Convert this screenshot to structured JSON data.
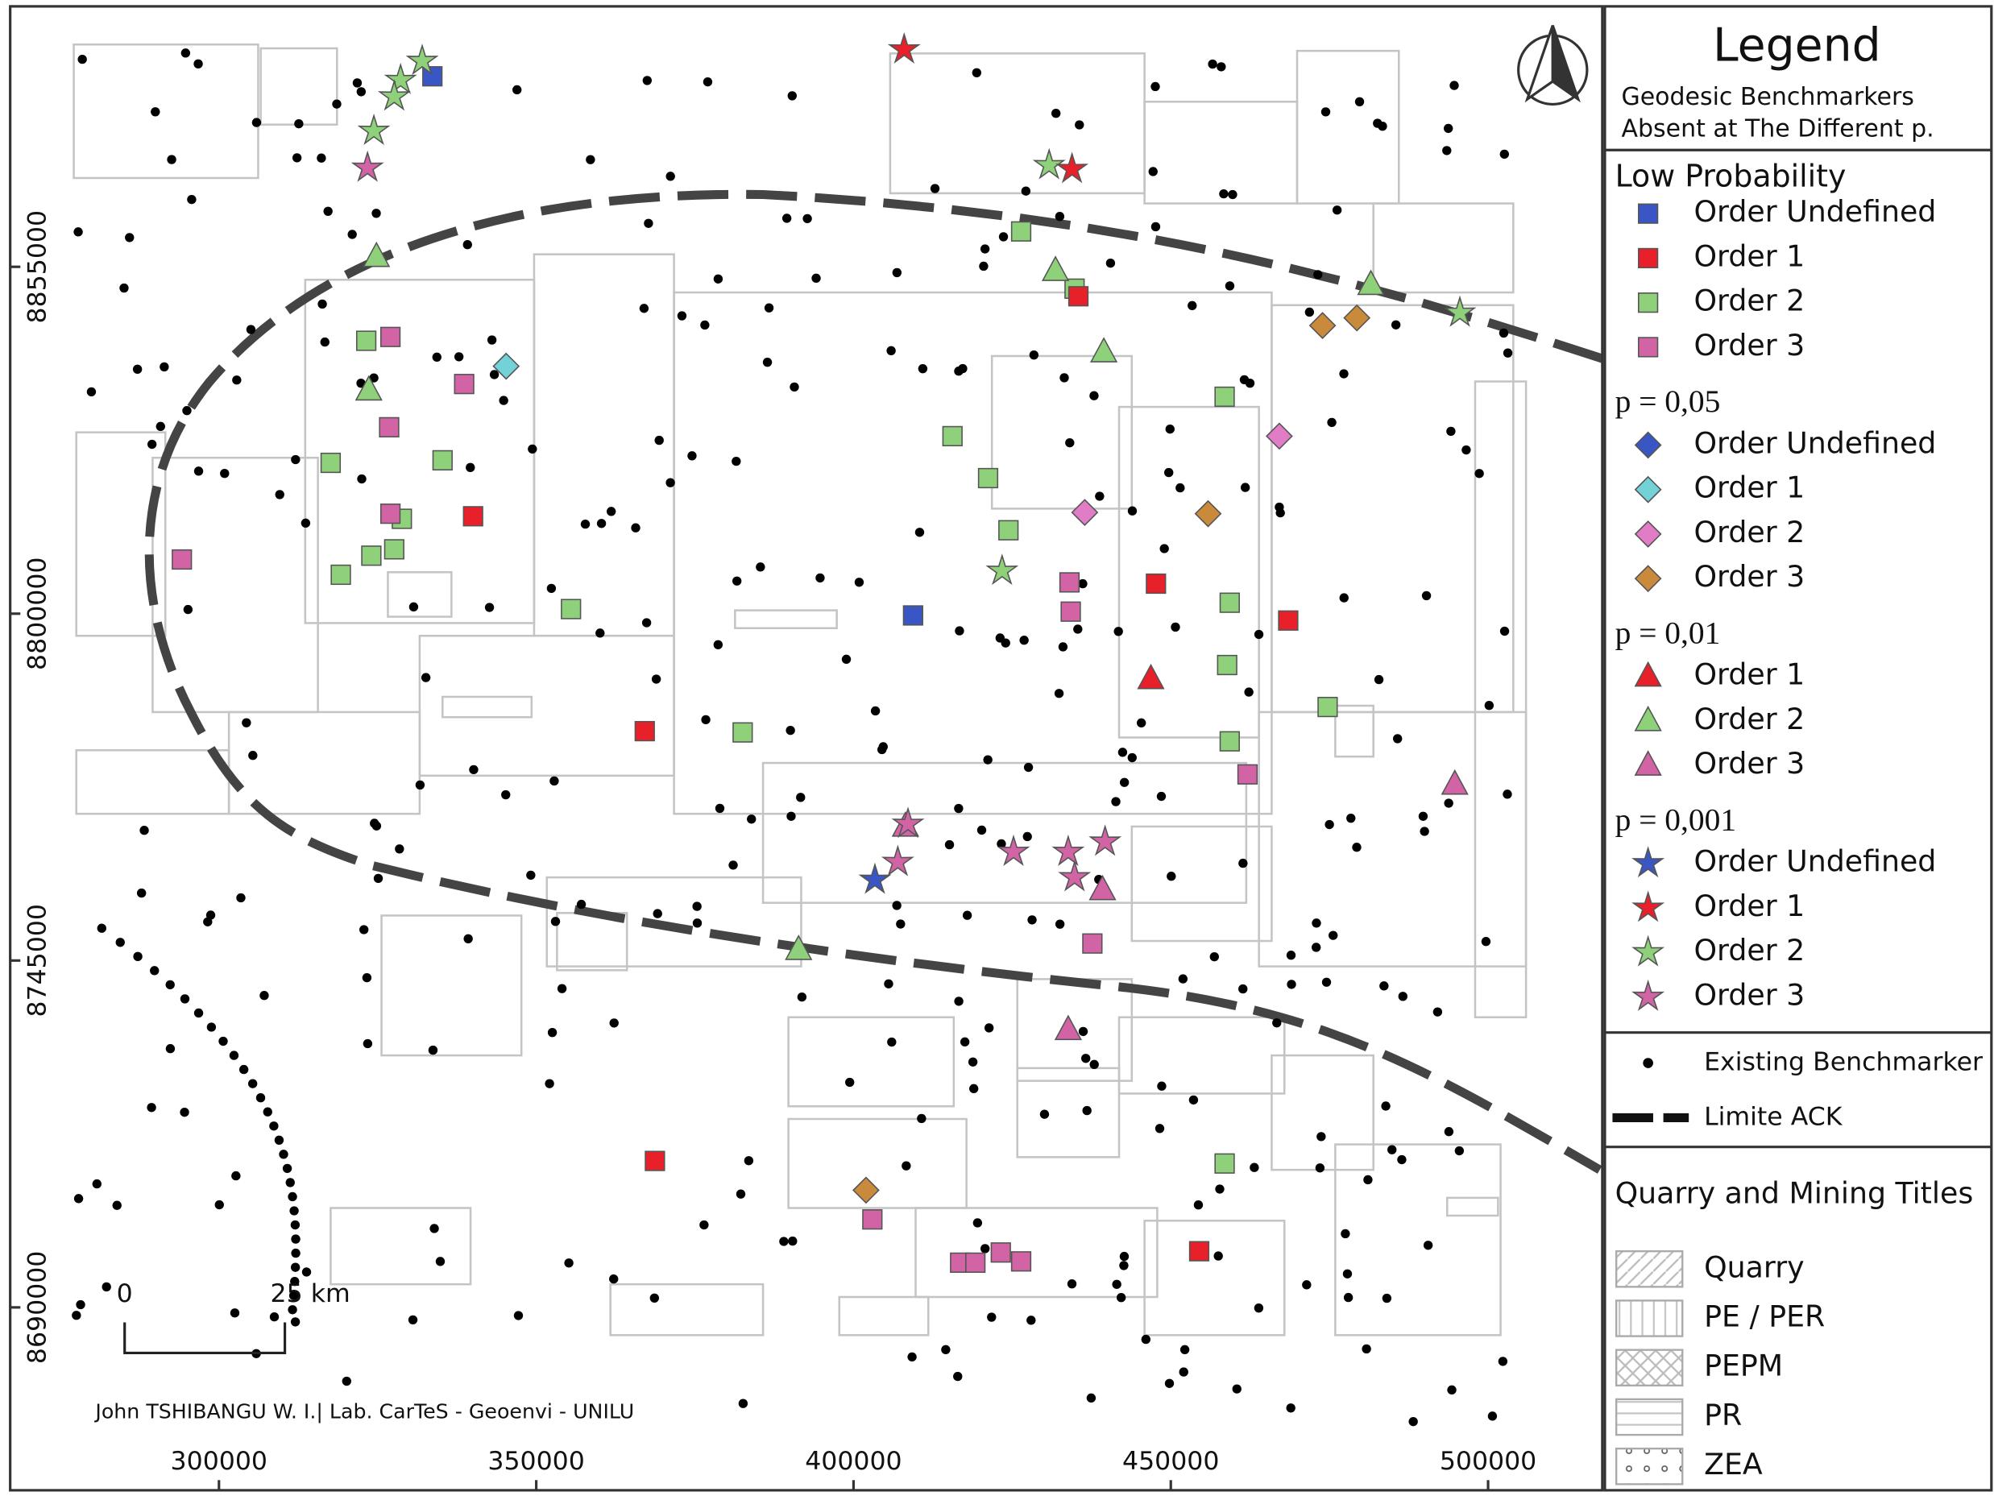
{
  "map": {
    "xlim": [
      267100,
      518000
    ],
    "ylim": [
      8661000,
      8896300
    ],
    "xticks": [
      300000,
      350000,
      400000,
      450000,
      500000
    ],
    "yticks": [
      8690000,
      8745000,
      8800000,
      8855000
    ]
  },
  "scale_bar": {
    "start": "0",
    "end": "25 km"
  },
  "credit": "John TSHIBANGU W. I.| Lab. CarTeS - Geoenvi - UNILU",
  "legend": {
    "title": "Legend",
    "subtitle": [
      "Geodesic Benchmarkers",
      "Absent at The Different p."
    ],
    "groups": [
      {
        "heading": "Low Probability",
        "items": [
          "Order Undefined",
          "Order 1",
          "Order 2",
          "Order 3"
        ]
      },
      {
        "heading": "p = 0,05",
        "items": [
          "Order Undefined",
          "Order 1",
          "Order 2",
          "Order 3"
        ]
      },
      {
        "heading": "p = 0,01",
        "items": [
          "Order 1",
          "Order 2",
          "Order 3"
        ]
      },
      {
        "heading": "p = 0,001",
        "items": [
          "Order Undefined",
          "Order 1",
          "Order 2",
          "Order 3"
        ]
      }
    ],
    "existing": "Existing Benchmarker",
    "limit": "Limite ACK",
    "titles_heading": "Quarry and Mining Titles",
    "titles": [
      "Quarry",
      "PE / PER",
      "PEPM",
      "PR",
      "ZEA"
    ]
  }
}
